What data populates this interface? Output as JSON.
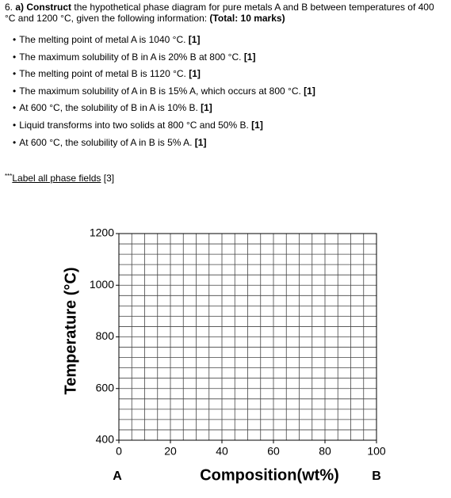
{
  "question": {
    "number": "6.",
    "lead": "a) Construct",
    "text": "the hypothetical phase diagram for pure metals A and B between temperatures of 400 °C and 1200 °C, given the following information:",
    "total": "(Total: 10 marks)"
  },
  "bullets": [
    {
      "text": "The melting point of metal A is 1040 °C.",
      "mark": "[1]"
    },
    {
      "text": "The maximum solubility of B in A is 20% B at 800 °C.",
      "mark": "[1]"
    },
    {
      "text": "The melting point of metal B is 1120 °C.",
      "mark": "[1]"
    },
    {
      "text": "The maximum solubility of A in B is 15% A, which occurs at 800 °C.",
      "mark": "[1]"
    },
    {
      "text": "At 600 °C, the solubility of B in A is 10% B.",
      "mark": "[1]"
    },
    {
      "text": "Liquid transforms into two solids at 800 °C and 50% B.",
      "mark": "[1]"
    },
    {
      "text": "At 600 °C, the solubility of A in B is 5% A.",
      "mark": "[1]"
    }
  ],
  "note": {
    "prefix": "***",
    "link": "Label all phase fields",
    "mark": "[3]"
  },
  "chart_data": {
    "type": "grid",
    "x_label": "Composition(wt%)",
    "y_label": "Temperature (°C)",
    "left_label": "A",
    "right_label": "B",
    "xlim": [
      0,
      100
    ],
    "xticks": [
      0,
      20,
      40,
      60,
      80,
      100
    ],
    "ylim": [
      400,
      1200
    ],
    "yticks": [
      400,
      600,
      800,
      1000,
      1200
    ],
    "minor_xticks": [
      0,
      5,
      10,
      15,
      20,
      25,
      30,
      35,
      40,
      45,
      50,
      55,
      60,
      65,
      70,
      75,
      80,
      85,
      90,
      95,
      100
    ],
    "minor_yticks": [
      400,
      440,
      480,
      520,
      560,
      600,
      640,
      680,
      720,
      760,
      800,
      840,
      880,
      920,
      960,
      1000,
      1040,
      1080,
      1120,
      1160,
      1200
    ]
  }
}
